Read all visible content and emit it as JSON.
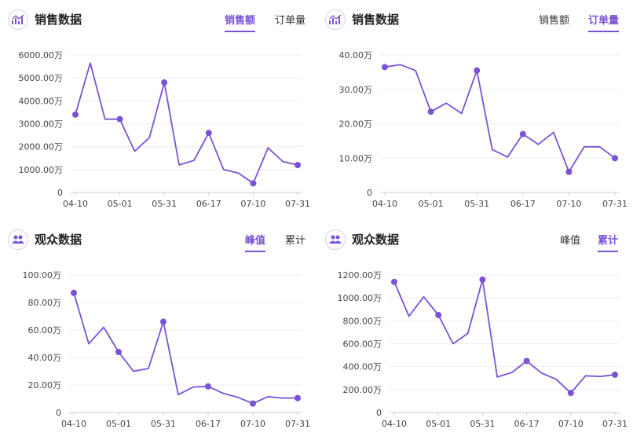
{
  "colors": {
    "accent": "#7a52d6",
    "grid": "#eeeeee",
    "axis": "#cccccc"
  },
  "panels": [
    {
      "title": "销售数据",
      "icon": "chart-icon",
      "tabs": [
        {
          "label": "销售额",
          "active": true
        },
        {
          "label": "订单量",
          "active": false
        }
      ]
    },
    {
      "title": "销售数据",
      "icon": "chart-icon",
      "tabs": [
        {
          "label": "销售额",
          "active": false
        },
        {
          "label": "订单量",
          "active": true
        }
      ]
    },
    {
      "title": "观众数据",
      "icon": "people-icon",
      "tabs": [
        {
          "label": "峰值",
          "active": true
        },
        {
          "label": "累计",
          "active": false
        }
      ]
    },
    {
      "title": "观众数据",
      "icon": "people-icon",
      "tabs": [
        {
          "label": "峰值",
          "active": false
        },
        {
          "label": "累计",
          "active": true
        }
      ]
    }
  ],
  "chart_data": [
    {
      "type": "line",
      "x_ticks": [
        "04-10",
        "05-01",
        "05-31",
        "06-17",
        "07-10",
        "07-31"
      ],
      "y_ticks": [
        "0",
        "1000.00万",
        "2000.00万",
        "3000.00万",
        "4000.00万",
        "5000.00万",
        "6000.00万"
      ],
      "ylim": [
        0,
        6000
      ],
      "values": [
        3400,
        5650,
        3200,
        3200,
        1800,
        2400,
        4800,
        1200,
        1400,
        2600,
        1000,
        850,
        400,
        1950,
        1350,
        1200
      ],
      "markers": [
        0,
        3,
        6,
        9,
        12,
        15
      ],
      "grid": true
    },
    {
      "type": "line",
      "x_ticks": [
        "04-10",
        "05-01",
        "05-31",
        "06-17",
        "07-10",
        "07-31"
      ],
      "y_ticks": [
        "0",
        "10.00万",
        "20.00万",
        "30.00万",
        "40.00万"
      ],
      "ylim": [
        0,
        40
      ],
      "values": [
        36.5,
        37.2,
        35.5,
        23.5,
        26,
        23,
        35.5,
        12.5,
        10.3,
        17,
        14,
        17.5,
        6,
        13.3,
        13.3,
        10
      ],
      "markers": [
        0,
        3,
        6,
        9,
        12,
        15
      ],
      "grid": true
    },
    {
      "type": "line",
      "x_ticks": [
        "04-10",
        "05-01",
        "05-31",
        "06-17",
        "07-10",
        "07-31"
      ],
      "y_ticks": [
        "0",
        "20.00万",
        "40.00万",
        "60.00万",
        "80.00万",
        "100.00万"
      ],
      "ylim": [
        0,
        100
      ],
      "values": [
        87,
        50,
        62,
        44,
        30,
        32,
        66,
        13,
        18.5,
        19,
        14,
        11,
        6.5,
        11.5,
        10.5,
        10.5
      ],
      "markers": [
        0,
        3,
        6,
        9,
        12,
        15
      ],
      "grid": true
    },
    {
      "type": "line",
      "x_ticks": [
        "04-10",
        "05-01",
        "05-31",
        "06-17",
        "07-10",
        "07-31"
      ],
      "y_ticks": [
        "0",
        "200.00万",
        "400.00万",
        "600.00万",
        "800.00万",
        "1000.00万",
        "1200.00万"
      ],
      "ylim": [
        0,
        1200
      ],
      "values": [
        1140,
        840,
        1010,
        850,
        600,
        690,
        1160,
        310,
        350,
        450,
        345,
        290,
        170,
        320,
        315,
        330
      ],
      "markers": [
        0,
        3,
        6,
        9,
        12,
        15
      ],
      "grid": true
    }
  ]
}
